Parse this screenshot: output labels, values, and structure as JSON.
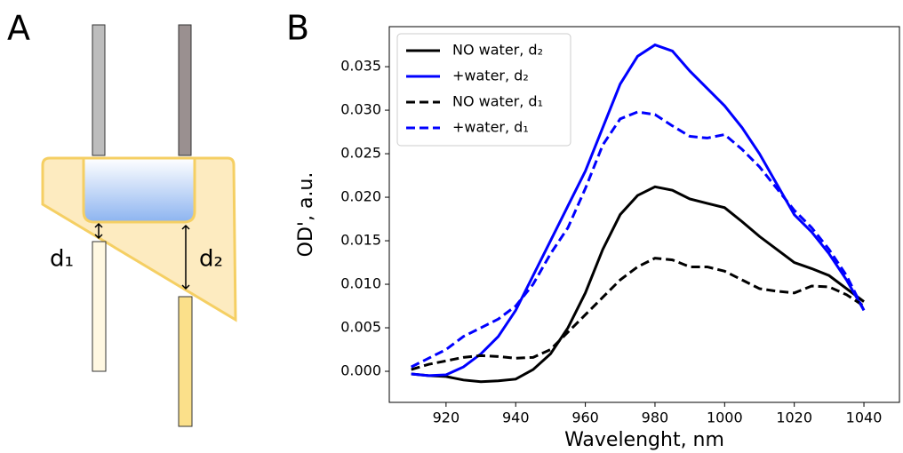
{
  "panel_a": {
    "label": "A",
    "gap_labels": [
      "d₁",
      "d₂"
    ]
  },
  "chart_data": {
    "type": "line",
    "panel_label": "B",
    "xlabel": "Wavelenght, nm",
    "ylabel": "OD', a.u.",
    "x": [
      910,
      915,
      920,
      925,
      930,
      935,
      940,
      945,
      950,
      955,
      960,
      965,
      970,
      975,
      980,
      985,
      990,
      995,
      1000,
      1005,
      1010,
      1015,
      1020,
      1025,
      1030,
      1035,
      1040
    ],
    "series": [
      {
        "name": "NO water, d₂",
        "color": "#000000",
        "dash": false,
        "values": [
          -0.0003,
          -0.0005,
          -0.0006,
          -0.001,
          -0.0012,
          -0.0011,
          -0.0009,
          0.0002,
          0.002,
          0.005,
          0.009,
          0.014,
          0.018,
          0.0202,
          0.0212,
          0.0208,
          0.0198,
          0.0193,
          0.0188,
          0.0172,
          0.0155,
          0.014,
          0.0125,
          0.0118,
          0.011,
          0.0095,
          0.008
        ]
      },
      {
        "name": "+water, d₂",
        "color": "#0000ff",
        "dash": false,
        "values": [
          -0.0003,
          -0.0005,
          -0.0004,
          0.0005,
          0.002,
          0.004,
          0.007,
          0.011,
          0.015,
          0.019,
          0.023,
          0.028,
          0.033,
          0.0362,
          0.0375,
          0.0368,
          0.0345,
          0.0325,
          0.0305,
          0.028,
          0.025,
          0.0215,
          0.018,
          0.016,
          0.0135,
          0.0105,
          0.007
        ]
      },
      {
        "name": "NO water, d₁",
        "color": "#000000",
        "dash": true,
        "values": [
          0.0002,
          0.0008,
          0.0012,
          0.0016,
          0.0018,
          0.0017,
          0.0015,
          0.0016,
          0.0025,
          0.0045,
          0.0065,
          0.0085,
          0.0105,
          0.012,
          0.013,
          0.0128,
          0.012,
          0.012,
          0.0115,
          0.0105,
          0.0095,
          0.0092,
          0.009,
          0.0098,
          0.0097,
          0.0088,
          0.0075
        ]
      },
      {
        "name": "+water, d₁",
        "color": "#0000ff",
        "dash": true,
        "values": [
          0.0005,
          0.0015,
          0.0025,
          0.004,
          0.005,
          0.006,
          0.0075,
          0.01,
          0.0135,
          0.0165,
          0.021,
          0.026,
          0.029,
          0.0298,
          0.0295,
          0.0282,
          0.027,
          0.0268,
          0.0272,
          0.0255,
          0.0235,
          0.021,
          0.0185,
          0.0165,
          0.014,
          0.011,
          0.007
        ]
      }
    ],
    "xlim": [
      903.7,
      1050.2
    ],
    "xticks": [
      920,
      940,
      960,
      980,
      1000,
      1020,
      1040
    ],
    "ylim": [
      -0.00357,
      0.0396
    ],
    "yticks": [
      {
        "value": 0,
        "label": "0.000"
      },
      0.005,
      {
        "value": 0.01,
        "label": "0.010"
      },
      0.015,
      {
        "value": 0.02,
        "label": "0.020"
      },
      0.025,
      {
        "value": 0.03,
        "label": "0.030"
      },
      0.035
    ],
    "legend": "upper left"
  }
}
